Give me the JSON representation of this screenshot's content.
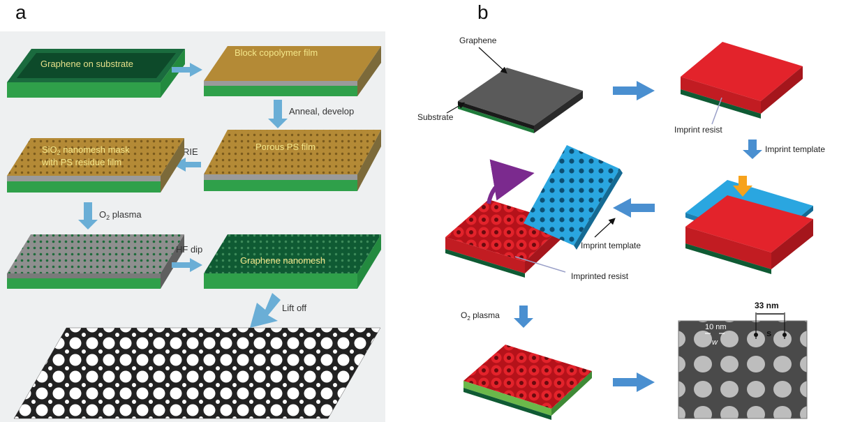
{
  "panel_a": {
    "label": "a",
    "steps": {
      "s1": "Graphene on substrate",
      "s2": "Block copolymer film",
      "s3": "Porous PS film",
      "s4_line1": "SiO",
      "s4_sub": "2",
      "s4_line1b": " nanomesh mask",
      "s4_line2": "with PS residue film",
      "s6": "Graphene nanomesh"
    },
    "arrows": {
      "anneal": "Anneal, develop",
      "rie": "RIE",
      "o2_main": "O",
      "o2_sub": "2",
      "o2_rest": " plasma",
      "hf": "HF dip",
      "lift": "Lift off"
    }
  },
  "panel_b": {
    "label": "b",
    "labels": {
      "graphene": "Graphene",
      "substrate": "Substrate",
      "imprint_resist": "Imprint resist",
      "imprint_template_arrow": "Imprint template",
      "imprint_template_label": "Imprint template",
      "imprinted_resist": "Imprinted resist",
      "o2_main": "O",
      "o2_sub": "2",
      "o2_rest": " plasma"
    },
    "sem": {
      "scale_33": "33 nm",
      "s": "s",
      "scale_10": "10 nm",
      "w": "w"
    }
  },
  "colors": {
    "green_dark": "#0f6b3a",
    "green_light": "#2fa04a",
    "gold": "#b48a36",
    "gray_layer": "#9a9a9a",
    "arrow_blue": "#6aaed6",
    "resist_red": "#e3232b",
    "template_blue": "#2aa6e0",
    "orange_arrow": "#f7a21b",
    "purple_arrow": "#7b2a8e"
  }
}
